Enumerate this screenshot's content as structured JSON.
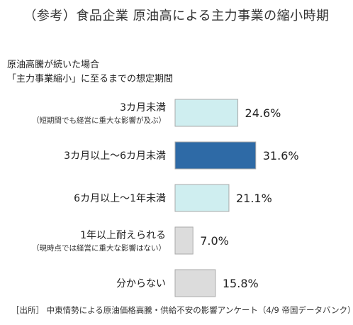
{
  "page_title": "（参考）食品企業 原油高による主力事業の縮小時期",
  "source_note": "［出所］ 中東情勢による原油価格高騰・供給不安の影響アンケート（4/9 帝国データバンク）",
  "chart_data": {
    "type": "bar",
    "orientation": "horizontal",
    "subtitle": [
      "原油高騰が続いた場合",
      "「主力事業縮小」に至るまでの想定期間"
    ],
    "unit": "%",
    "grid": false,
    "categories": [
      {
        "label": "3カ月未満",
        "note": "（短期間でも経営に重大な影響が及ぶ）"
      },
      {
        "label": "3カ月以上～6カ月未満",
        "note": ""
      },
      {
        "label": "6カ月以上～1年未満",
        "note": ""
      },
      {
        "label": "1年以上耐えられる",
        "note": "（現時点では経営に重大な影響はない）"
      },
      {
        "label": "分からない",
        "note": ""
      }
    ],
    "values": [
      24.6,
      31.6,
      21.1,
      7.0,
      15.8
    ],
    "value_labels": [
      "24.6%",
      "31.6%",
      "21.1%",
      "7.0%",
      "15.8%"
    ],
    "colors": [
      "#cfeef0",
      "#2e6aa6",
      "#cfeef0",
      "#dcdcdc",
      "#dcdcdc"
    ],
    "bar_border": "#aaaaaa"
  }
}
